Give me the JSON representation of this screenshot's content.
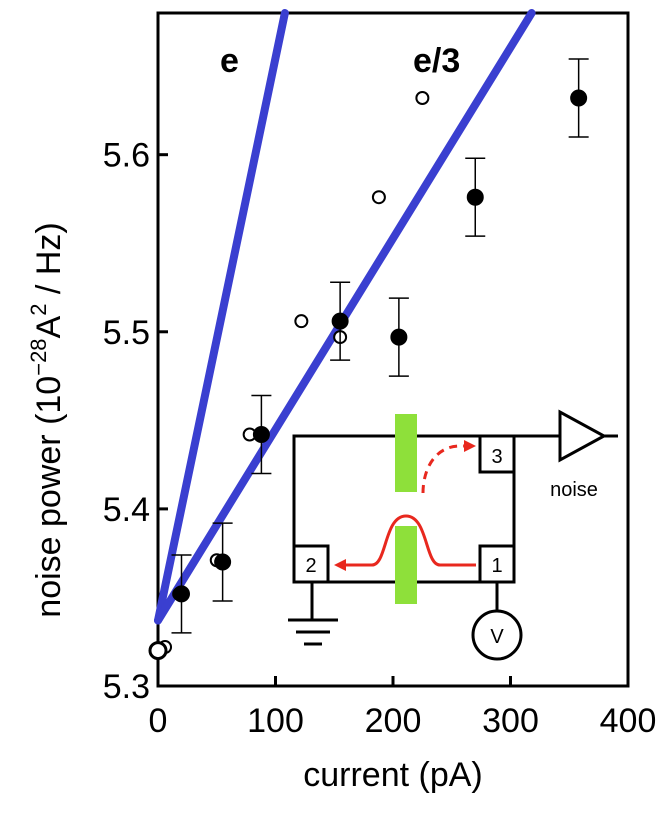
{
  "chart_data": {
    "type": "scatter",
    "xlabel": "current (pA)",
    "ylabel_main": "noise power (10",
    "ylabel_exp1": "−28",
    "ylabel_mid": "A",
    "ylabel_exp2": "2",
    "ylabel_end": " / Hz)",
    "xlim": [
      0,
      400
    ],
    "ylim": [
      5.3,
      5.68
    ],
    "x_ticks": [
      0,
      100,
      200,
      300,
      400
    ],
    "y_ticks": [
      5.3,
      5.4,
      5.5,
      5.6
    ],
    "grid": false,
    "series": [
      {
        "marker": "filled-circle",
        "x": [
          0,
          20,
          55,
          88,
          155,
          205,
          270,
          358
        ],
        "y": [
          5.32,
          5.352,
          5.37,
          5.442,
          5.506,
          5.497,
          5.576,
          5.632
        ],
        "yerr": [
          0,
          0.022,
          0.022,
          0.022,
          0.022,
          0.022,
          0.022,
          0.022
        ]
      },
      {
        "marker": "open-circle",
        "x": [
          6,
          18,
          50,
          78,
          122,
          155,
          188,
          225
        ],
        "y": [
          5.322,
          5.352,
          5.371,
          5.442,
          5.506,
          5.497,
          5.576,
          5.632
        ]
      }
    ],
    "lines": [
      {
        "name": "e",
        "x": [
          0,
          108
        ],
        "y": [
          5.337,
          5.68
        ]
      },
      {
        "name": "e/3",
        "x": [
          0,
          318
        ],
        "y": [
          5.337,
          5.68
        ]
      }
    ],
    "colors": {
      "lines": "#3a3fd0",
      "inset_gate": "#8ee03a",
      "inset_arrow": "#e8281e"
    },
    "inset": {
      "contact_1": "1",
      "contact_2": "2",
      "contact_3": "3",
      "noise_label": "noise",
      "voltmeter_label": "V"
    }
  }
}
